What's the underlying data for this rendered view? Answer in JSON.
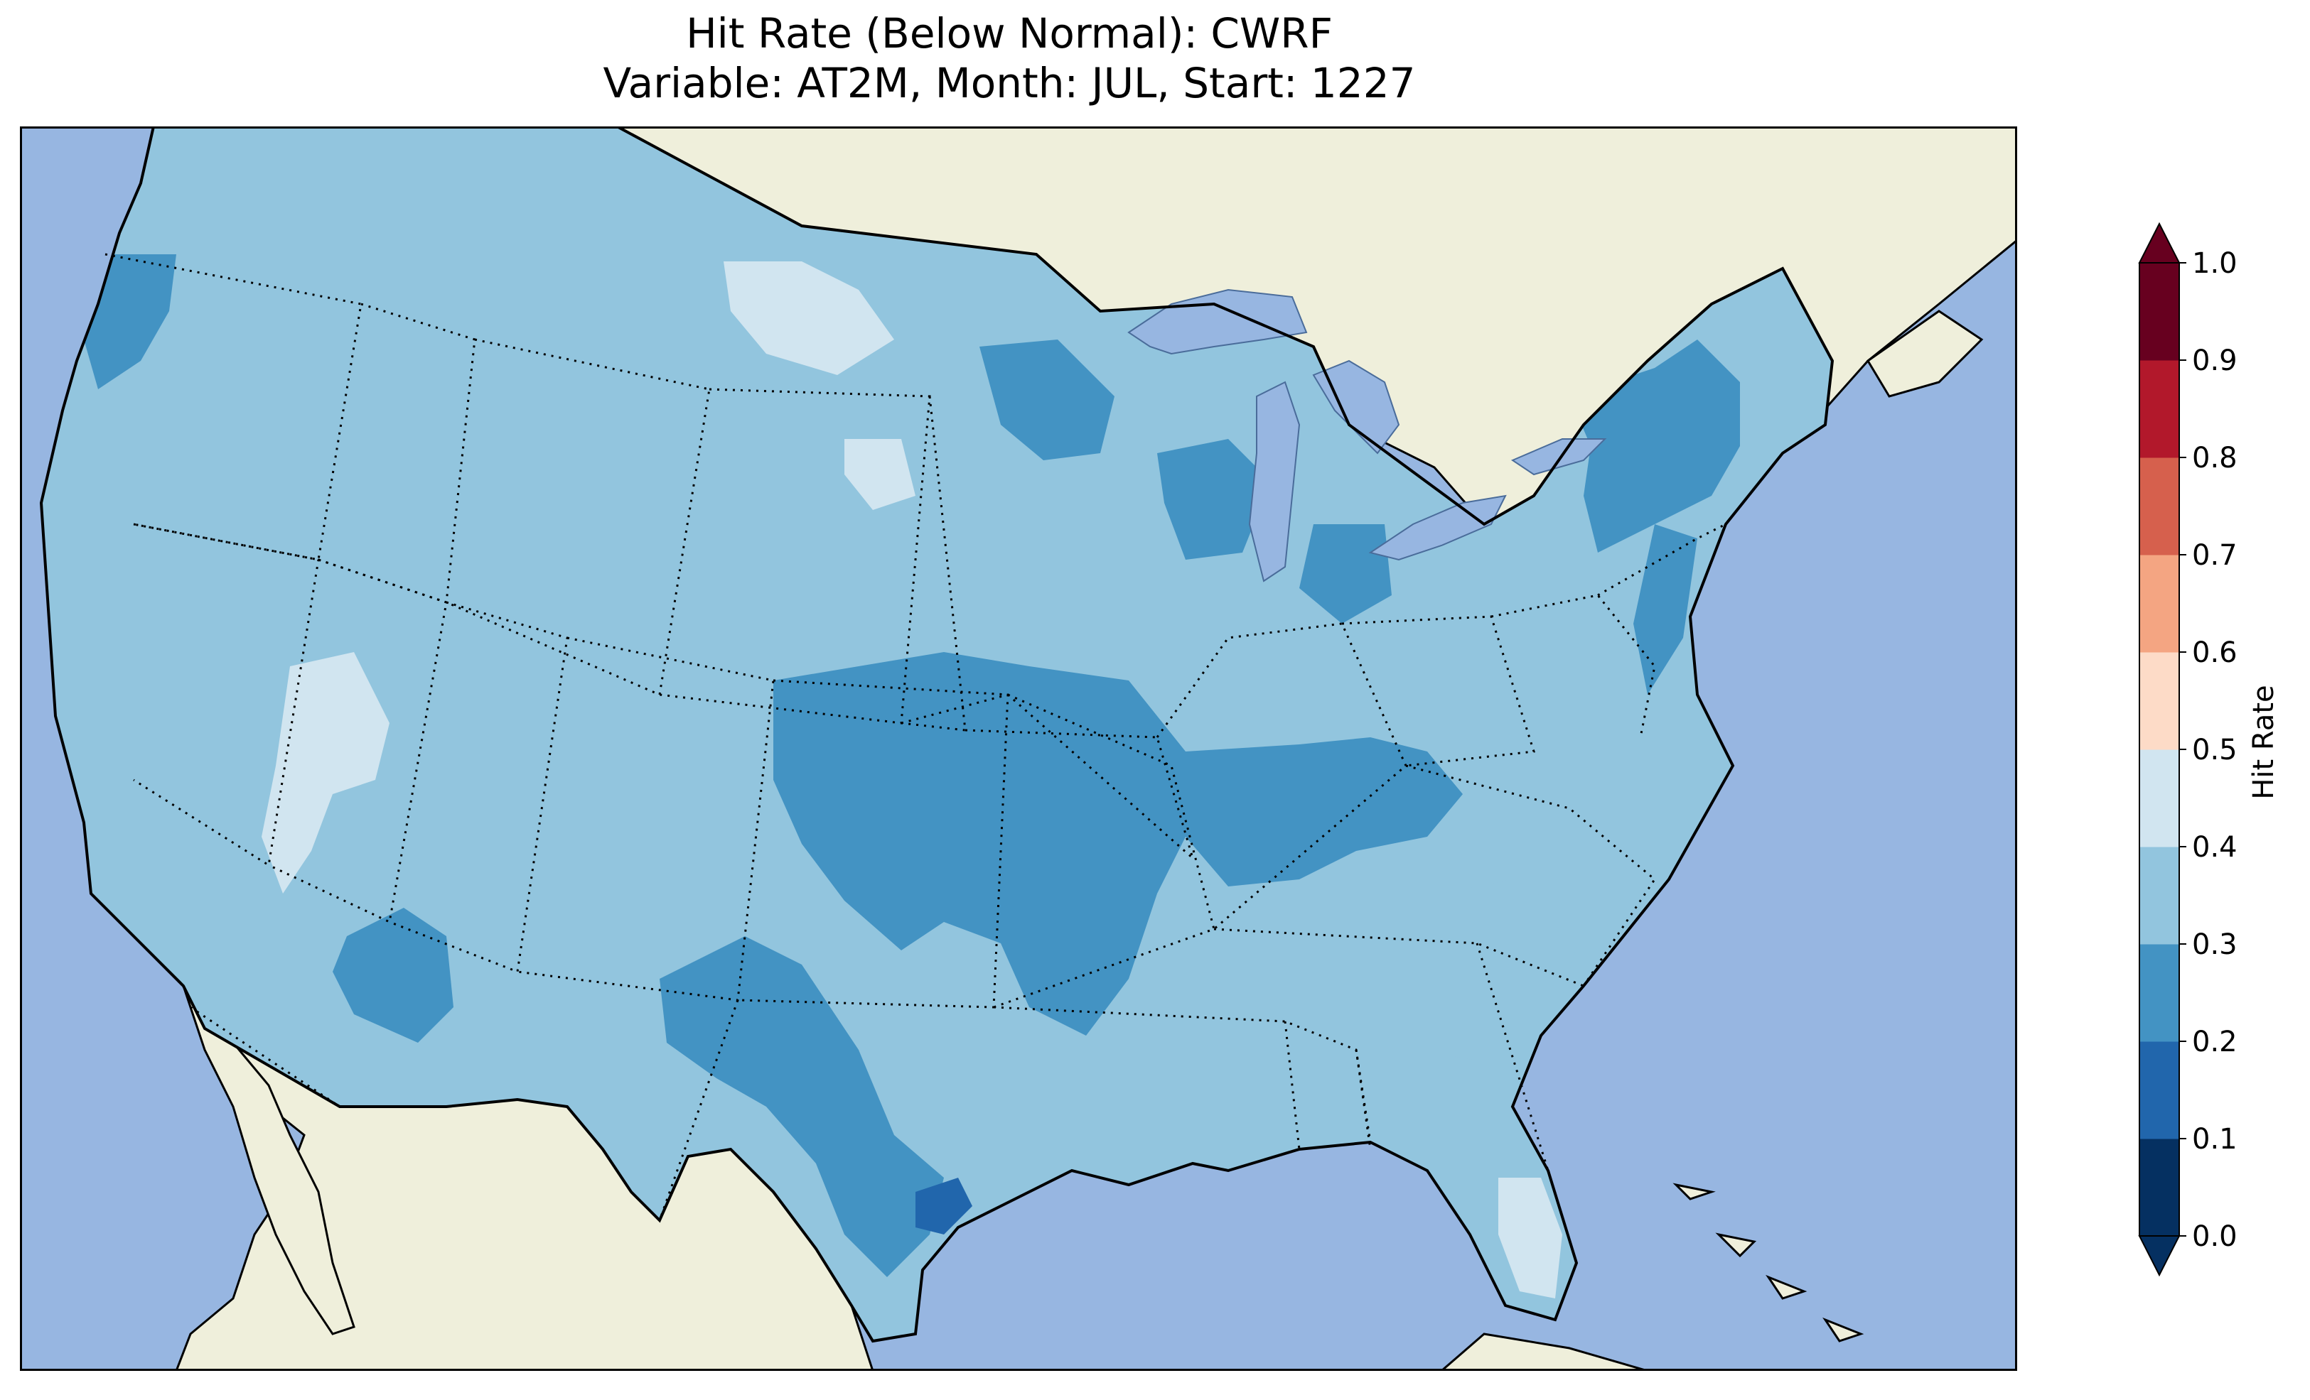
{
  "title": {
    "line1": "Hit Rate (Below Normal): CWRF",
    "line2": "Variable: AT2M, Month: JUL, Start: 1227"
  },
  "map": {
    "region": "Contiguous United States",
    "colors": {
      "ocean": "#97b6e1",
      "land": "#efefdb",
      "coastline": "#000000",
      "borders": "#000000"
    }
  },
  "colorbar": {
    "label": "Hit Rate",
    "ticks": [
      "0.0",
      "0.1",
      "0.2",
      "0.3",
      "0.4",
      "0.5",
      "0.6",
      "0.7",
      "0.8",
      "0.9",
      "1.0"
    ],
    "levels": [
      0.0,
      0.1,
      0.2,
      0.3,
      0.4,
      0.5,
      0.6,
      0.7,
      0.8,
      0.9,
      1.0
    ],
    "colors": [
      "#053061",
      "#2166ac",
      "#4393c3",
      "#92c5de",
      "#d1e5f0",
      "#fddbc7",
      "#f4a582",
      "#d6604d",
      "#b2182b",
      "#67001f"
    ],
    "under_color": "#053061",
    "over_color": "#67001f",
    "extend": "both"
  },
  "chart_data": {
    "type": "heatmap",
    "title": "Hit Rate (Below Normal): CWRF\nVariable: AT2M, Month: JUL, Start: 1227",
    "colorbar_label": "Hit Rate",
    "vmin": 0.0,
    "vmax": 1.0,
    "dominant_range": [
      0.3,
      0.4
    ],
    "regions": [
      {
        "name": "Pacific Northwest coast",
        "range": [
          0.2,
          0.3
        ]
      },
      {
        "name": "Northern Plains (ND/SD)",
        "range": [
          0.4,
          0.5
        ]
      },
      {
        "name": "Great Basin (Nevada/Utah)",
        "range": [
          0.4,
          0.5
        ]
      },
      {
        "name": "Arizona",
        "range": [
          0.2,
          0.3
        ]
      },
      {
        "name": "Upper Midwest / Great Lakes",
        "range": [
          0.2,
          0.3
        ]
      },
      {
        "name": "Kansas/Oklahoma/Missouri/Arkansas",
        "range": [
          0.2,
          0.3
        ]
      },
      {
        "name": "Kentucky/Tennessee",
        "range": [
          0.2,
          0.3
        ]
      },
      {
        "name": "Central/East Texas",
        "range": [
          0.2,
          0.3
        ]
      },
      {
        "name": "Texas Gulf coast (Houston)",
        "range": [
          0.1,
          0.2
        ]
      },
      {
        "name": "New England / Hudson Valley",
        "range": [
          0.2,
          0.3
        ]
      },
      {
        "name": "Southeast",
        "range": [
          0.3,
          0.4
        ]
      },
      {
        "name": "South Florida",
        "range": [
          0.4,
          0.5
        ]
      }
    ]
  }
}
